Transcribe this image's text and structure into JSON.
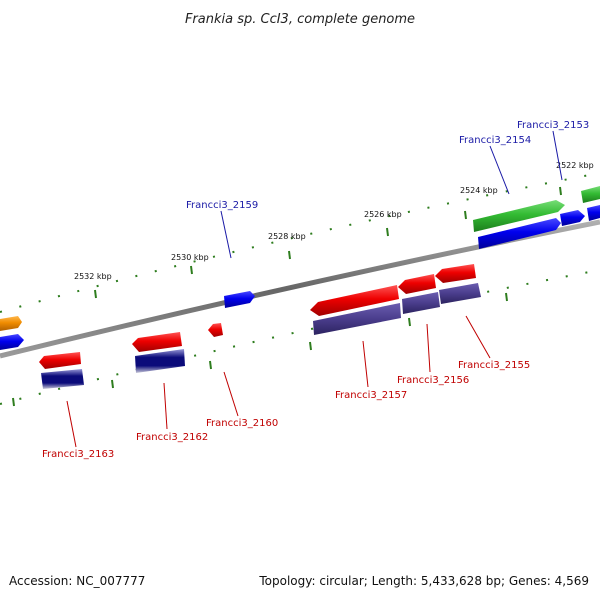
{
  "title": "Frankia sp. CcI3, complete genome",
  "footer": {
    "accession": "Accession: NC_007777",
    "summary": "Topology: circular; Length: 5,433,628 bp; Genes: 4,569"
  },
  "scale_labels": [
    "2532 kbp",
    "2530 kbp",
    "2528 kbp",
    "2526 kbp",
    "2524 kbp",
    "2522 kbp"
  ],
  "forward_gene_labels": [
    "Francci3_2159",
    "Francci3_2154",
    "Francci3_2153"
  ],
  "reverse_gene_labels": [
    "Francci3_2163",
    "Francci3_2162",
    "Francci3_2160",
    "Francci3_2157",
    "Francci3_2156",
    "Francci3_2155"
  ],
  "colors": {
    "forward_label": "#1a1aa6",
    "reverse_label": "#c00000",
    "backbone": "#7a7a7a",
    "tick": "#2e7d1e",
    "gene_red": "#ee0000",
    "gene_blue": "#0000ee",
    "gene_green": "#33bb33",
    "gene_orange": "#f08c00",
    "gene_purple": "#4a3d8c",
    "gene_navy": "#0b0b7a"
  }
}
